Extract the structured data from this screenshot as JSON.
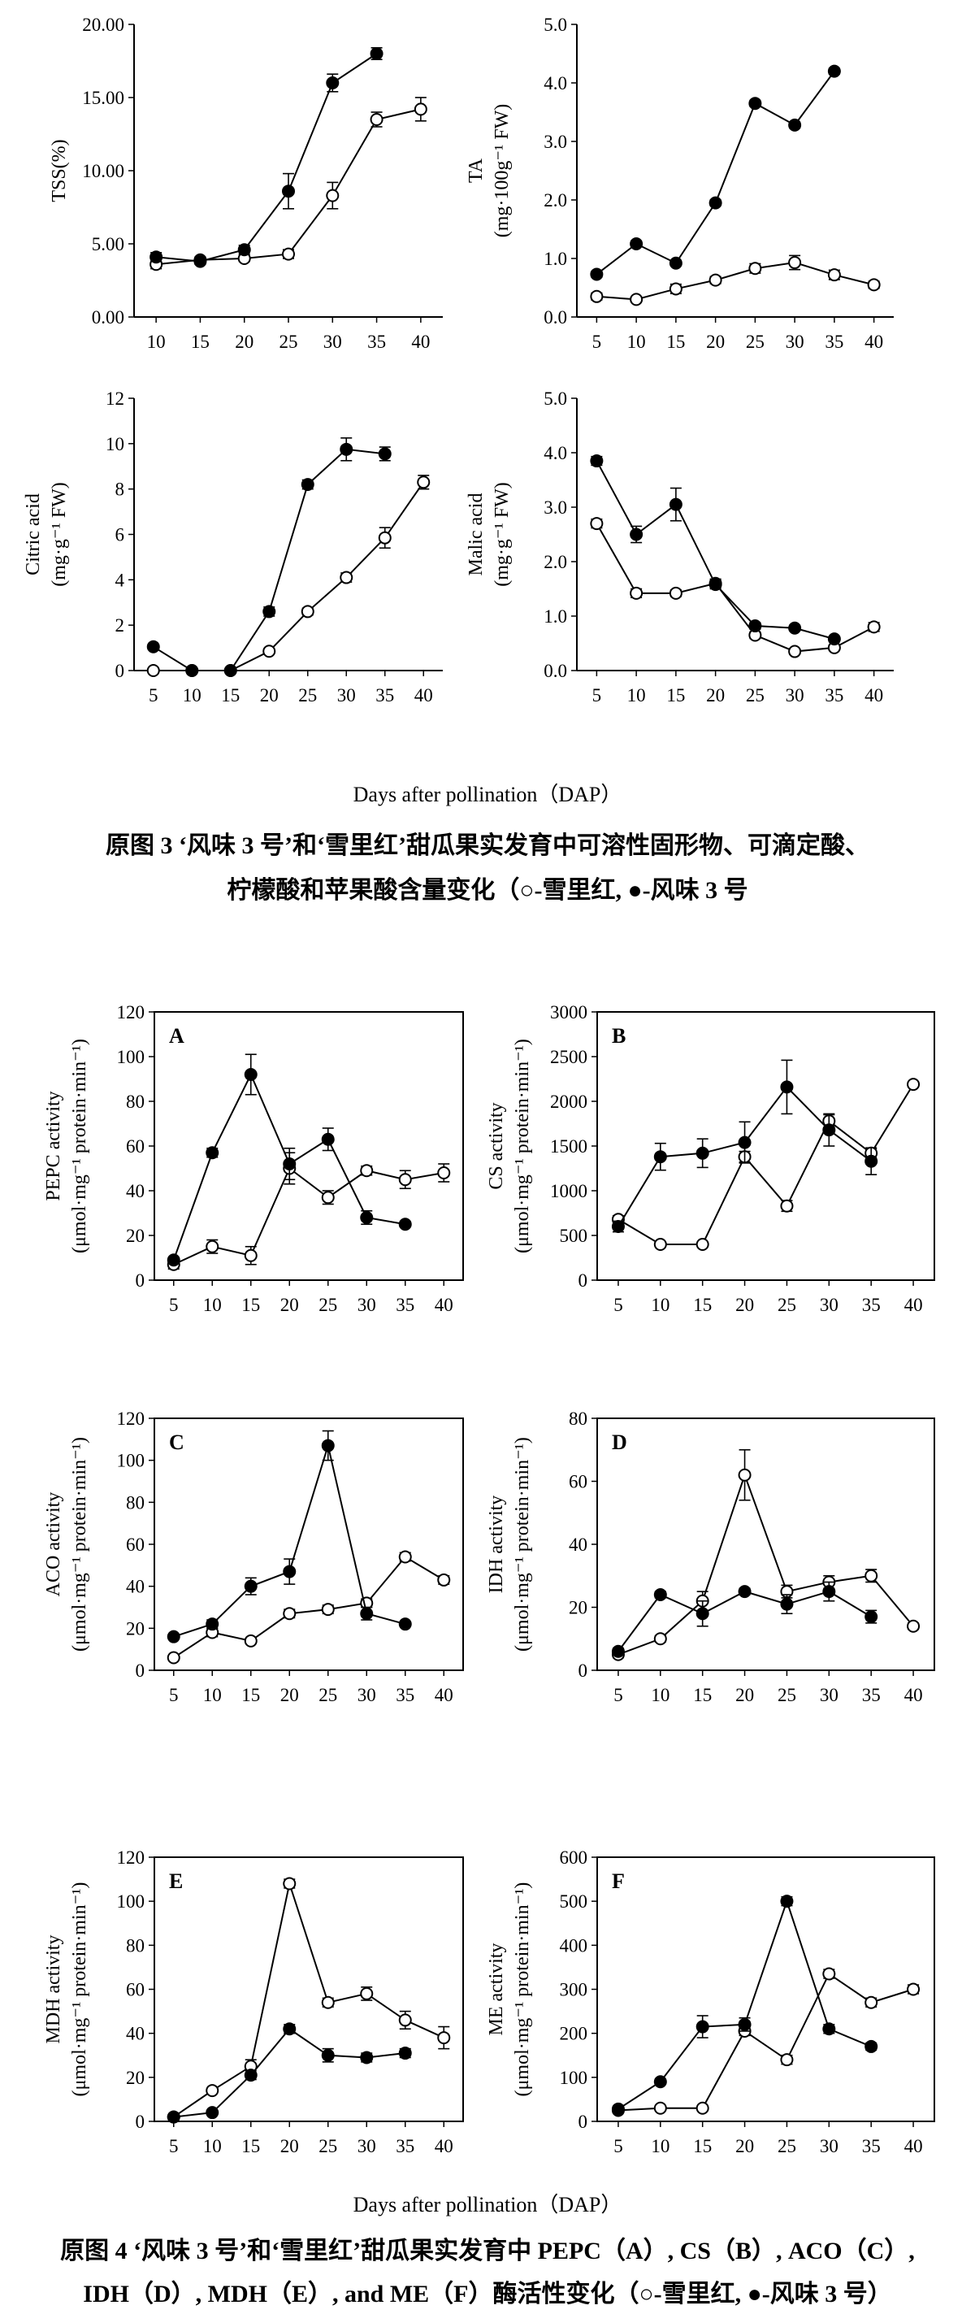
{
  "figure3": {
    "xlabel": "Days after pollination（DAP）",
    "caption_line1": "原图 3 ‘风味 3 号’和‘雪里红’甜瓜果实发育中可溶性固形物、可滴定酸、",
    "caption_line2": "柠檬酸和苹果酸含量变化（○-雪里红, ●-风味 3 号"
  },
  "figure4": {
    "xlabel": "Days after pollination（DAP）",
    "caption_line1": "原图 4 ‘风味 3 号’和‘雪里红’甜瓜果实发育中 PEPC（A）, CS（B）, ACO（C）,",
    "caption_line2": "IDH（D）, MDH（E）, and ME（F）酶活性变化（○-雪里红, ●-风味 3 号）"
  },
  "chart_data": [
    {
      "id": "tss",
      "type": "line",
      "ylabel": [
        "TSS(%)"
      ],
      "ylim": [
        0,
        20
      ],
      "yticks": [
        0,
        5,
        10,
        15,
        20
      ],
      "ytick_labels": [
        "0.00",
        "5.00",
        "10.00",
        "15.00",
        "20.00"
      ],
      "xticks": [
        10,
        15,
        20,
        25,
        30,
        35,
        40
      ],
      "xlim": [
        7.5,
        42.5
      ],
      "series": [
        {
          "marker": "open",
          "x": [
            10,
            15,
            20,
            25,
            30,
            35,
            40
          ],
          "y": [
            3.6,
            3.9,
            4.0,
            4.3,
            8.3,
            13.5,
            14.2
          ],
          "err": [
            0.3,
            0.2,
            0.2,
            0.3,
            0.9,
            0.5,
            0.8
          ]
        },
        {
          "marker": "filled",
          "x": [
            10,
            15,
            20,
            25,
            30,
            35
          ],
          "y": [
            4.1,
            3.8,
            4.6,
            8.6,
            16.0,
            18.0
          ],
          "err": [
            0.3,
            0.2,
            0.3,
            1.2,
            0.6,
            0.4
          ]
        }
      ]
    },
    {
      "id": "ta",
      "type": "line",
      "ylabel": [
        "TA",
        "(mg·100g⁻¹ FW)"
      ],
      "ylim": [
        0,
        5
      ],
      "yticks": [
        0,
        1,
        2,
        3,
        4,
        5
      ],
      "ytick_labels": [
        "0.0",
        "1.0",
        "2.0",
        "3.0",
        "4.0",
        "5.0"
      ],
      "xticks": [
        5,
        10,
        15,
        20,
        25,
        30,
        35,
        40
      ],
      "xlim": [
        2.5,
        42.5
      ],
      "series": [
        {
          "marker": "open",
          "x": [
            5,
            10,
            15,
            20,
            25,
            30,
            35,
            40
          ],
          "y": [
            0.35,
            0.3,
            0.48,
            0.63,
            0.83,
            0.93,
            0.72,
            0.55
          ],
          "err": [
            0.06,
            0.04,
            0.08,
            0.06,
            0.08,
            0.12,
            0.08,
            0.06
          ]
        },
        {
          "marker": "filled",
          "x": [
            5,
            10,
            15,
            20,
            25,
            30,
            35
          ],
          "y": [
            0.73,
            1.25,
            0.92,
            1.95,
            3.65,
            3.28,
            4.2
          ],
          "err": [
            0.05,
            0.05,
            0.04,
            0.05,
            0.05,
            0.05,
            0.05
          ]
        }
      ]
    },
    {
      "id": "citric",
      "type": "line",
      "ylabel": [
        "Citric acid",
        "(mg·g⁻¹ FW)"
      ],
      "ylim": [
        0,
        12
      ],
      "yticks": [
        0,
        2,
        4,
        6,
        8,
        10,
        12
      ],
      "ytick_labels": [
        "0",
        "2",
        "4",
        "6",
        "8",
        "10",
        "12"
      ],
      "xticks": [
        5,
        10,
        15,
        20,
        25,
        30,
        35,
        40
      ],
      "xlim": [
        2.5,
        42.5
      ],
      "series": [
        {
          "marker": "open",
          "x": [
            5,
            10,
            15,
            20,
            25,
            30,
            35,
            40
          ],
          "y": [
            0.0,
            0.0,
            0.0,
            0.85,
            2.6,
            4.1,
            5.85,
            8.3
          ],
          "err": [
            0.05,
            0.05,
            0.05,
            0.1,
            0.15,
            0.2,
            0.45,
            0.3
          ]
        },
        {
          "marker": "filled",
          "x": [
            5,
            10,
            15,
            20,
            25,
            30,
            35
          ],
          "y": [
            1.05,
            0.0,
            0.0,
            2.6,
            8.2,
            9.75,
            9.55
          ],
          "err": [
            0.1,
            0.05,
            0.05,
            0.2,
            0.2,
            0.5,
            0.3
          ]
        }
      ]
    },
    {
      "id": "malic",
      "type": "line",
      "ylabel": [
        "Malic acid",
        "(mg·g⁻¹ FW)"
      ],
      "ylim": [
        0,
        5
      ],
      "yticks": [
        0,
        1,
        2,
        3,
        4,
        5
      ],
      "ytick_labels": [
        "0.0",
        "1.0",
        "2.0",
        "3.0",
        "4.0",
        "5.0"
      ],
      "xticks": [
        5,
        10,
        15,
        20,
        25,
        30,
        35,
        40
      ],
      "xlim": [
        2.5,
        42.5
      ],
      "series": [
        {
          "marker": "open",
          "x": [
            5,
            10,
            15,
            20,
            25,
            30,
            35,
            40
          ],
          "y": [
            2.7,
            1.42,
            1.42,
            1.6,
            0.65,
            0.35,
            0.42,
            0.8
          ],
          "err": [
            0.08,
            0.08,
            0.06,
            0.08,
            0.06,
            0.05,
            0.05,
            0.08
          ]
        },
        {
          "marker": "filled",
          "x": [
            5,
            10,
            15,
            20,
            25,
            30,
            35
          ],
          "y": [
            3.85,
            2.5,
            3.05,
            1.58,
            0.82,
            0.78,
            0.58
          ],
          "err": [
            0.08,
            0.15,
            0.3,
            0.08,
            0.06,
            0.05,
            0.05
          ]
        }
      ]
    },
    {
      "id": "pepc",
      "type": "line",
      "panel_letter": "A",
      "ylabel": [
        "PEPC activity",
        "(μmol·mg⁻¹ protein·min⁻¹)"
      ],
      "ylim": [
        0,
        120
      ],
      "yticks": [
        0,
        20,
        40,
        60,
        80,
        100,
        120
      ],
      "ytick_labels": [
        "0",
        "20",
        "40",
        "60",
        "80",
        "100",
        "120"
      ],
      "xticks": [
        5,
        10,
        15,
        20,
        25,
        30,
        35,
        40
      ],
      "xlim": [
        2.5,
        42.5
      ],
      "series": [
        {
          "marker": "open",
          "x": [
            5,
            10,
            15,
            20,
            25,
            30,
            35,
            40
          ],
          "y": [
            7,
            15,
            11,
            50,
            37,
            49,
            45,
            48
          ],
          "err": [
            2,
            3,
            4,
            7,
            3,
            2,
            4,
            4
          ]
        },
        {
          "marker": "filled",
          "x": [
            5,
            10,
            15,
            20,
            25,
            30,
            35
          ],
          "y": [
            9,
            57,
            92,
            52,
            63,
            28,
            25
          ],
          "err": [
            1,
            2,
            9,
            7,
            5,
            3,
            1
          ]
        }
      ]
    },
    {
      "id": "cs",
      "type": "line",
      "panel_letter": "B",
      "ylabel": [
        "CS activity",
        "(μmol·mg⁻¹ protein·min⁻¹)"
      ],
      "ylim": [
        0,
        3000
      ],
      "yticks": [
        0,
        500,
        1000,
        1500,
        2000,
        2500,
        3000
      ],
      "ytick_labels": [
        "0",
        "500",
        "1000",
        "1500",
        "2000",
        "2500",
        "3000"
      ],
      "xticks": [
        5,
        10,
        15,
        20,
        25,
        30,
        35,
        40
      ],
      "xlim": [
        2.5,
        42.5
      ],
      "series": [
        {
          "marker": "open",
          "x": [
            5,
            10,
            15,
            20,
            25,
            30,
            35,
            40
          ],
          "y": [
            680,
            400,
            400,
            1380,
            830,
            1780,
            1420,
            2190
          ],
          "err": [
            40,
            20,
            20,
            60,
            60,
            70,
            50,
            30
          ]
        },
        {
          "marker": "filled",
          "x": [
            5,
            10,
            15,
            20,
            25,
            30,
            35
          ],
          "y": [
            600,
            1380,
            1420,
            1540,
            2160,
            1680,
            1330
          ],
          "err": [
            60,
            150,
            160,
            230,
            300,
            180,
            150
          ]
        }
      ]
    },
    {
      "id": "aco",
      "type": "line",
      "panel_letter": "C",
      "ylabel": [
        "ACO activity",
        "(μmol·mg⁻¹ protein·min⁻¹)"
      ],
      "ylim": [
        0,
        120
      ],
      "yticks": [
        0,
        20,
        40,
        60,
        80,
        100,
        120
      ],
      "ytick_labels": [
        "0",
        "20",
        "40",
        "60",
        "80",
        "100",
        "120"
      ],
      "xticks": [
        5,
        10,
        15,
        20,
        25,
        30,
        35,
        40
      ],
      "xlim": [
        2.5,
        42.5
      ],
      "series": [
        {
          "marker": "open",
          "x": [
            5,
            10,
            15,
            20,
            25,
            30,
            35,
            40
          ],
          "y": [
            6,
            18,
            14,
            27,
            29,
            32,
            54,
            43
          ],
          "err": [
            1,
            2,
            1,
            2,
            2,
            2,
            2,
            2
          ]
        },
        {
          "marker": "filled",
          "x": [
            5,
            10,
            15,
            20,
            25,
            30,
            35
          ],
          "y": [
            16,
            22,
            40,
            47,
            107,
            27,
            22
          ],
          "err": [
            1,
            2,
            4,
            6,
            7,
            3,
            1
          ]
        }
      ]
    },
    {
      "id": "idh",
      "type": "line",
      "panel_letter": "D",
      "ylabel": [
        "IDH activity",
        "(μmol·mg⁻¹ protein·min⁻¹)"
      ],
      "ylim": [
        0,
        80
      ],
      "yticks": [
        0,
        20,
        40,
        60,
        80
      ],
      "ytick_labels": [
        "0",
        "20",
        "40",
        "60",
        "80"
      ],
      "xticks": [
        5,
        10,
        15,
        20,
        25,
        30,
        35,
        40
      ],
      "xlim": [
        2.5,
        42.5
      ],
      "series": [
        {
          "marker": "open",
          "x": [
            5,
            10,
            15,
            20,
            25,
            30,
            35,
            40
          ],
          "y": [
            5,
            10,
            22,
            62,
            25,
            28,
            30,
            14
          ],
          "err": [
            1,
            1,
            3,
            8,
            2,
            2,
            2,
            1
          ]
        },
        {
          "marker": "filled",
          "x": [
            5,
            10,
            15,
            20,
            25,
            30,
            35
          ],
          "y": [
            6,
            24,
            18,
            25,
            21,
            25,
            17
          ],
          "err": [
            1,
            1,
            4,
            1,
            3,
            3,
            2
          ]
        }
      ]
    },
    {
      "id": "mdh",
      "type": "line",
      "panel_letter": "E",
      "ylabel": [
        "MDH activity",
        "(μmol·mg⁻¹ protein·min⁻¹)"
      ],
      "ylim": [
        0,
        120
      ],
      "yticks": [
        0,
        20,
        40,
        60,
        80,
        100,
        120
      ],
      "ytick_labels": [
        "0",
        "20",
        "40",
        "60",
        "80",
        "100",
        "120"
      ],
      "xticks": [
        5,
        10,
        15,
        20,
        25,
        30,
        35,
        40
      ],
      "xlim": [
        2.5,
        42.5
      ],
      "series": [
        {
          "marker": "open",
          "x": [
            5,
            10,
            15,
            20,
            25,
            30,
            35,
            40
          ],
          "y": [
            2,
            14,
            25,
            108,
            54,
            58,
            46,
            38
          ],
          "err": [
            1,
            1,
            3,
            2,
            2,
            3,
            4,
            5
          ]
        },
        {
          "marker": "filled",
          "x": [
            5,
            10,
            15,
            20,
            25,
            30,
            35
          ],
          "y": [
            2,
            4,
            21,
            42,
            30,
            29,
            31
          ],
          "err": [
            1,
            1,
            2,
            2,
            3,
            2,
            2
          ]
        }
      ]
    },
    {
      "id": "me",
      "type": "line",
      "panel_letter": "F",
      "ylabel": [
        "ME activity",
        "(μmol·mg⁻¹ protein·min⁻¹)"
      ],
      "ylim": [
        0,
        600
      ],
      "yticks": [
        0,
        100,
        200,
        300,
        400,
        500,
        600
      ],
      "ytick_labels": [
        "0",
        "100",
        "200",
        "300",
        "400",
        "500",
        "600"
      ],
      "xticks": [
        5,
        10,
        15,
        20,
        25,
        30,
        35,
        40
      ],
      "xlim": [
        2.5,
        42.5
      ],
      "series": [
        {
          "marker": "open",
          "x": [
            5,
            10,
            15,
            20,
            25,
            30,
            35,
            40
          ],
          "y": [
            25,
            30,
            30,
            205,
            140,
            335,
            270,
            300
          ],
          "err": [
            5,
            5,
            5,
            10,
            10,
            10,
            10,
            10
          ]
        },
        {
          "marker": "filled",
          "x": [
            5,
            10,
            15,
            20,
            25,
            30,
            35
          ],
          "y": [
            28,
            90,
            215,
            220,
            500,
            210,
            170
          ],
          "err": [
            5,
            5,
            25,
            15,
            10,
            10,
            8
          ]
        }
      ]
    }
  ]
}
